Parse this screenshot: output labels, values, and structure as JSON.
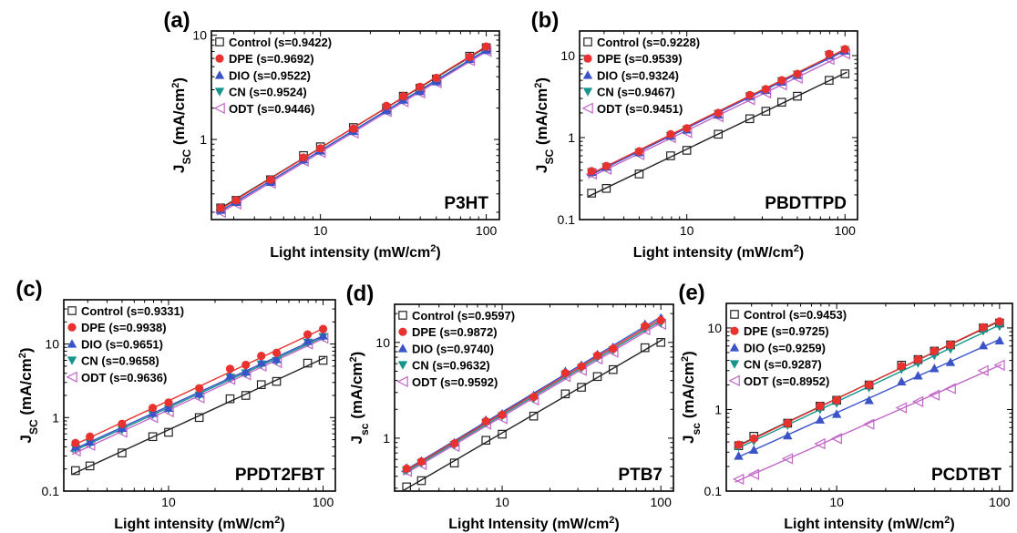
{
  "colors": {
    "Control": "#222222",
    "DPE": "#e8322f",
    "DIO": "#3a53c8",
    "CN": "#17948b",
    "ODT": "#c266c8",
    "axis": "#000000"
  },
  "legend_labels": [
    "Control",
    "DPE",
    "DIO",
    "CN",
    "ODT"
  ],
  "markers": {
    "Control": "open-square",
    "DPE": "filled-circle",
    "DIO": "filled-up-triangle",
    "CN": "filled-down-triangle",
    "ODT": "open-left-triangle"
  },
  "chart_data": [
    {
      "type": "scatter",
      "panel_label": "(a)",
      "material": "P3HT",
      "xlabel_main": "Light intensity ",
      "xlabel_unit": "(mW/cm",
      "xlabel_sup": "2",
      "xlabel_end": ")",
      "ylabel_main": "J",
      "ylabel_sub": "SC",
      "ylabel_rest": " (mA/cm",
      "ylabel_sup": "2",
      "ylabel_end": ")",
      "x_scale": "log",
      "y_scale": "log",
      "xlim": [
        2.2,
        120
      ],
      "ylim": [
        0.17,
        11
      ],
      "xticks": [
        10,
        100
      ],
      "yticks": [
        1,
        10
      ],
      "x": [
        2.5,
        3.1,
        5.0,
        7.9,
        10,
        15.8,
        25,
        31.6,
        39.8,
        50,
        79.4,
        100
      ],
      "series": [
        {
          "name": "Control",
          "s_label": "(s=0.9422)",
          "values": [
            0.22,
            0.26,
            0.41,
            0.7,
            0.85,
            1.3,
            2.0,
            2.6,
            3.1,
            3.8,
            6.3,
            7.6
          ]
        },
        {
          "name": "DPE",
          "s_label": "(s=0.9692)",
          "values": [
            0.22,
            0.26,
            0.41,
            0.67,
            0.82,
            1.27,
            2.1,
            2.6,
            3.2,
            3.9,
            6.2,
            7.8
          ]
        },
        {
          "name": "DIO",
          "s_label": "(s=0.9522)",
          "values": [
            0.21,
            0.25,
            0.39,
            0.64,
            0.78,
            1.2,
            1.9,
            2.4,
            2.9,
            3.6,
            5.9,
            7.2
          ]
        },
        {
          "name": "CN",
          "s_label": "(s=0.9524)",
          "values": [
            0.21,
            0.25,
            0.39,
            0.64,
            0.78,
            1.2,
            1.95,
            2.4,
            2.95,
            3.6,
            5.9,
            7.3
          ]
        },
        {
          "name": "ODT",
          "s_label": "(s=0.9446)",
          "values": [
            0.2,
            0.24,
            0.38,
            0.62,
            0.75,
            1.15,
            1.85,
            2.3,
            2.8,
            3.5,
            5.7,
            7.0
          ]
        }
      ]
    },
    {
      "type": "scatter",
      "panel_label": "(b)",
      "material": "PBDTTPD",
      "xlabel_main": "Light intensity ",
      "xlabel_unit": "(mW/cm",
      "xlabel_sup": "2",
      "xlabel_end": ")",
      "ylabel_main": "J",
      "ylabel_sub": "SC",
      "ylabel_rest": " (mA/cm",
      "ylabel_sup": "2",
      "ylabel_end": ")",
      "x_scale": "log",
      "y_scale": "log",
      "xlim": [
        2.1,
        120
      ],
      "ylim": [
        0.1,
        20
      ],
      "xticks": [
        10,
        100
      ],
      "yticks": [
        0.1,
        1,
        10
      ],
      "x": [
        2.5,
        3.1,
        5.0,
        7.9,
        10,
        15.8,
        25,
        31.6,
        39.8,
        50,
        79.4,
        100
      ],
      "series": [
        {
          "name": "Control",
          "s_label": "(s=0.9228)",
          "values": [
            0.21,
            0.24,
            0.36,
            0.6,
            0.7,
            1.1,
            1.7,
            2.1,
            2.7,
            3.2,
            5.0,
            6.0
          ]
        },
        {
          "name": "DPE",
          "s_label": "(s=0.9539)",
          "values": [
            0.39,
            0.45,
            0.68,
            1.1,
            1.3,
            2.0,
            3.3,
            3.9,
            5.0,
            6.0,
            10.5,
            12.0
          ]
        },
        {
          "name": "DIO",
          "s_label": "(s=0.9324)",
          "values": [
            0.38,
            0.44,
            0.66,
            1.05,
            1.25,
            1.9,
            3.2,
            3.8,
            4.8,
            5.8,
            10.0,
            11.5
          ]
        },
        {
          "name": "CN",
          "s_label": "(s=0.9467)",
          "values": [
            0.38,
            0.44,
            0.66,
            1.05,
            1.25,
            1.95,
            3.2,
            3.8,
            4.9,
            5.9,
            10.2,
            11.7
          ]
        },
        {
          "name": "ODT",
          "s_label": "(s=0.9451)",
          "values": [
            0.36,
            0.41,
            0.62,
            1.0,
            1.15,
            1.8,
            2.9,
            3.5,
            4.4,
            5.3,
            9.0,
            10.5
          ]
        }
      ]
    },
    {
      "type": "scatter",
      "panel_label": "(c)",
      "material": "PPDT2FBT",
      "xlabel_main": "Light intensity ",
      "xlabel_unit": "(mW/cm",
      "xlabel_sup": "2",
      "xlabel_end": ")",
      "ylabel_main": "J",
      "ylabel_sub": "SC",
      "ylabel_rest": " (mA/cm",
      "ylabel_sup": "2",
      "ylabel_end": ")",
      "x_scale": "log",
      "y_scale": "log",
      "xlim": [
        2.1,
        120
      ],
      "ylim": [
        0.1,
        40
      ],
      "xticks": [
        10,
        100
      ],
      "yticks": [
        0.1,
        1,
        10
      ],
      "x": [
        2.5,
        3.1,
        5.0,
        7.9,
        10,
        15.8,
        25,
        31.6,
        39.8,
        50,
        79.4,
        100
      ],
      "series": [
        {
          "name": "Control",
          "s_label": "(s=0.9331)",
          "values": [
            0.19,
            0.22,
            0.33,
            0.55,
            0.63,
            1.0,
            1.8,
            2.0,
            2.8,
            3.1,
            5.5,
            6.0
          ]
        },
        {
          "name": "DPE",
          "s_label": "(s=0.9938)",
          "values": [
            0.45,
            0.55,
            0.82,
            1.35,
            1.6,
            2.5,
            4.6,
            5.2,
            6.9,
            7.6,
            13.5,
            16.0
          ]
        },
        {
          "name": "DIO",
          "s_label": "(s=0.9651)",
          "values": [
            0.4,
            0.47,
            0.72,
            1.15,
            1.35,
            2.1,
            3.7,
            4.2,
            5.6,
            6.2,
            11.0,
            13.0
          ]
        },
        {
          "name": "CN",
          "s_label": "(s=0.9658)",
          "values": [
            0.38,
            0.45,
            0.68,
            1.1,
            1.3,
            2.0,
            3.5,
            4.0,
            5.3,
            5.9,
            10.5,
            12.5
          ]
        },
        {
          "name": "ODT",
          "s_label": "(s=0.9636)",
          "values": [
            0.35,
            0.42,
            0.63,
            1.0,
            1.2,
            1.85,
            3.3,
            3.8,
            5.0,
            5.6,
            10.0,
            12.0
          ]
        }
      ]
    },
    {
      "type": "scatter",
      "panel_label": "(d)",
      "material": "PTB7",
      "xlabel_main": "Light Intensity ",
      "xlabel_unit": "(mW/cm",
      "xlabel_sup": "2",
      "xlabel_end": ")",
      "ylabel_main": "J",
      "ylabel_sub": "sc",
      "ylabel_rest": " (mA/cm",
      "ylabel_sup": "2",
      "ylabel_end": ")",
      "x_scale": "log",
      "y_scale": "log",
      "xlim": [
        2.1,
        120
      ],
      "ylim": [
        0.28,
        25
      ],
      "xticks": [
        10,
        100
      ],
      "yticks": [
        1,
        10
      ],
      "x": [
        2.5,
        3.1,
        5.0,
        7.9,
        10,
        15.8,
        25,
        31.6,
        39.8,
        50,
        79.4,
        100
      ],
      "series": [
        {
          "name": "Control",
          "s_label": "(s=0.9597)",
          "values": [
            0.31,
            0.36,
            0.55,
            0.95,
            1.1,
            1.7,
            2.9,
            3.4,
            4.4,
            5.2,
            8.8,
            10.0
          ]
        },
        {
          "name": "DPE",
          "s_label": "(s=0.9872)",
          "values": [
            0.48,
            0.57,
            0.88,
            1.5,
            1.75,
            2.7,
            4.8,
            5.6,
            7.3,
            8.6,
            14.8,
            17.0
          ]
        },
        {
          "name": "DIO",
          "s_label": "(s=0.9740)",
          "values": [
            0.49,
            0.58,
            0.9,
            1.55,
            1.8,
            2.8,
            5.0,
            5.8,
            7.5,
            8.9,
            15.5,
            18.0
          ]
        },
        {
          "name": "CN",
          "s_label": "(s=0.9632)",
          "values": [
            0.46,
            0.55,
            0.85,
            1.45,
            1.7,
            2.6,
            4.6,
            5.4,
            7.0,
            8.3,
            14.2,
            16.0
          ]
        },
        {
          "name": "ODT",
          "s_label": "(s=0.9592)",
          "values": [
            0.45,
            0.53,
            0.82,
            1.4,
            1.6,
            2.5,
            4.4,
            5.1,
            6.7,
            7.9,
            13.5,
            15.5
          ]
        }
      ]
    },
    {
      "type": "scatter",
      "panel_label": "(e)",
      "material": "PCDTBT",
      "xlabel_main": "Light intensity ",
      "xlabel_unit": "(mW/cm",
      "xlabel_sup": "2",
      "xlabel_end": ")",
      "ylabel_main": "J",
      "ylabel_sub": "sc",
      "ylabel_rest": " (mA/cm",
      "ylabel_sup": "2",
      "ylabel_end": ")",
      "x_scale": "log",
      "y_scale": "log",
      "xlim": [
        2.1,
        120
      ],
      "ylim": [
        0.1,
        20
      ],
      "xticks": [
        10,
        100
      ],
      "yticks": [
        0.1,
        1,
        10
      ],
      "x": [
        2.5,
        3.1,
        5.0,
        7.9,
        10,
        15.8,
        25,
        31.6,
        39.8,
        50,
        79.4,
        100
      ],
      "series": [
        {
          "name": "Control",
          "s_label": "(s=0.9453)",
          "values": [
            0.36,
            0.47,
            0.68,
            1.1,
            1.3,
            2.0,
            3.5,
            4.1,
            5.2,
            6.2,
            10.0,
            11.5
          ]
        },
        {
          "name": "DPE",
          "s_label": "(s=0.9725)",
          "values": [
            0.37,
            0.44,
            0.68,
            1.1,
            1.3,
            2.0,
            3.4,
            4.1,
            5.2,
            6.2,
            10.2,
            12.0
          ]
        },
        {
          "name": "DIO",
          "s_label": "(s=0.9259)",
          "values": [
            0.27,
            0.32,
            0.48,
            0.75,
            0.88,
            1.3,
            2.2,
            2.6,
            3.2,
            3.8,
            6.1,
            7.0
          ]
        },
        {
          "name": "CN",
          "s_label": "(s=0.9287)",
          "values": [
            0.35,
            0.41,
            0.64,
            1.0,
            1.2,
            1.85,
            3.1,
            3.7,
            4.6,
            5.5,
            9.2,
            10.5
          ]
        },
        {
          "name": "ODT",
          "s_label": "(s=0.8952)",
          "values": [
            0.14,
            0.16,
            0.25,
            0.38,
            0.44,
            0.66,
            1.05,
            1.25,
            1.5,
            1.8,
            3.0,
            3.5
          ]
        }
      ]
    }
  ]
}
